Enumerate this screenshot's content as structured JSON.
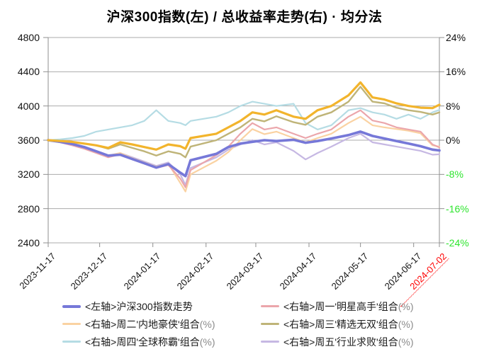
{
  "title": "沪深300指数(左) / 总收益率走势(右) · 均分法",
  "axes": {
    "left": {
      "ticks": [
        {
          "label": "4800",
          "value": 4800
        },
        {
          "label": "4400",
          "value": 4400
        },
        {
          "label": "4000",
          "value": 4000
        },
        {
          "label": "3600",
          "value": 3600
        },
        {
          "label": "3200",
          "value": 3200
        },
        {
          "label": "2800",
          "value": 2800
        },
        {
          "label": "2400",
          "value": 2400
        }
      ]
    },
    "right": {
      "negative_color": "#2ee52e",
      "positive_color": "#111111",
      "ticks": [
        {
          "label": "24%",
          "value": 24
        },
        {
          "label": "16%",
          "value": 16
        },
        {
          "label": "8%",
          "value": 8
        },
        {
          "label": "0%",
          "value": 0
        },
        {
          "label": "-8%",
          "value": -8
        },
        {
          "label": "-16%",
          "value": -16
        },
        {
          "label": "-24%",
          "value": -24
        }
      ]
    },
    "x": {
      "highlight_color": "#ff0000",
      "ticks": [
        {
          "label": "2023-11-17"
        },
        {
          "label": "2023-12-17"
        },
        {
          "label": "2024-01-17"
        },
        {
          "label": "2024-02-17"
        },
        {
          "label": "2024-03-17"
        },
        {
          "label": "2024-04-17"
        },
        {
          "label": "2024-05-17"
        },
        {
          "label": "2024-06-17"
        },
        {
          "label": "2024-07-02",
          "highlight": true
        }
      ]
    }
  },
  "chart_data": {
    "type": "line",
    "title": "沪深300指数(左) / 总收益率走势(右) · 均分法",
    "grid": true,
    "legend_position": "bottom",
    "left_axis": {
      "range": [
        2400,
        4800
      ],
      "tick_step": 400
    },
    "right_axis": {
      "range": [
        -24,
        24
      ],
      "tick_step": 8,
      "unit": "%"
    },
    "x": [
      "2023-11-17",
      "2023-11-24",
      "2023-12-01",
      "2023-12-08",
      "2023-12-15",
      "2023-12-22",
      "2023-12-29",
      "2024-01-05",
      "2024-01-12",
      "2024-01-19",
      "2024-01-26",
      "2024-02-02",
      "2024-02-05",
      "2024-02-08",
      "2024-02-23",
      "2024-03-01",
      "2024-03-08",
      "2024-03-15",
      "2024-03-22",
      "2024-03-29",
      "2024-04-08",
      "2024-04-15",
      "2024-04-22",
      "2024-04-30",
      "2024-05-10",
      "2024-05-17",
      "2024-05-24",
      "2024-05-31",
      "2024-06-07",
      "2024-06-14",
      "2024-06-21",
      "2024-06-28",
      "2024-07-02"
    ],
    "series": [
      {
        "name": "<左轴>沪深300指数走势",
        "suffix": "",
        "axis": "left",
        "color": "#7678d8",
        "width": 3.6,
        "z": 6,
        "in_legend": true,
        "values": [
          3600,
          3580,
          3555,
          3520,
          3470,
          3420,
          3430,
          3380,
          3330,
          3280,
          3320,
          3220,
          3180,
          3365,
          3440,
          3520,
          3560,
          3580,
          3600,
          3590,
          3605,
          3570,
          3590,
          3620,
          3660,
          3700,
          3650,
          3620,
          3590,
          3560,
          3530,
          3490,
          3480
        ]
      },
      {
        "name": "<右轴>周一'明星高手'组合",
        "suffix": "(%)",
        "axis": "right",
        "color": "#eba6ab",
        "width": 2.2,
        "z": 4,
        "in_legend": true,
        "values": [
          0,
          -0.5,
          -1.2,
          -2,
          -3,
          -4,
          -3.3,
          -4.5,
          -5.5,
          -6.5,
          -5.8,
          -9,
          -11,
          -7,
          -3.5,
          -1.5,
          1.5,
          4,
          2.5,
          3,
          1.5,
          0.5,
          1.5,
          2.5,
          5.5,
          7,
          4.6,
          4,
          3,
          2.5,
          2,
          -1,
          -1.7
        ]
      },
      {
        "name": "<右轴>周二'内地豪侠'组合",
        "suffix": "(%)",
        "axis": "right",
        "color": "#fad2a2",
        "width": 2.2,
        "z": 3,
        "in_legend": true,
        "values": [
          0,
          -0.3,
          -0.9,
          -1.6,
          -2.6,
          -3.6,
          -3,
          -4.2,
          -5.2,
          -6.2,
          -5.5,
          -10,
          -12,
          -8,
          -4.8,
          -2.8,
          0,
          2.6,
          1.4,
          2,
          0.5,
          -0.5,
          0.5,
          1.5,
          4,
          5.5,
          3.5,
          3,
          2.6,
          2.2,
          1.6,
          -1.2,
          -1.5
        ]
      },
      {
        "name": "<右轴>周三'精选无双'组合",
        "suffix": "(%)",
        "axis": "right",
        "color": "#bfb478",
        "width": 2.4,
        "z": 5,
        "in_legend": true,
        "values": [
          0,
          -0.2,
          -0.5,
          -0.8,
          -1.2,
          -2,
          -1,
          -1.8,
          -2.6,
          -3.6,
          -2.6,
          -3.2,
          -4,
          -1.5,
          0,
          1.5,
          3,
          5,
          4.4,
          5.6,
          4.2,
          3.6,
          5.5,
          6.5,
          9,
          12.5,
          9,
          8.6,
          7.6,
          7,
          6.6,
          6,
          6.5
        ]
      },
      {
        "name": "<右轴>周四'全球称霸'组合",
        "suffix": "(%)",
        "axis": "right",
        "color": "#b5dce4",
        "width": 2.2,
        "z": 1,
        "in_legend": true,
        "values": [
          0,
          0.2,
          0.5,
          1,
          2,
          2.5,
          3,
          3.5,
          4.5,
          7,
          4.5,
          4,
          3.5,
          4.5,
          5.5,
          6.5,
          8,
          9,
          8.5,
          8,
          8.5,
          4,
          2.5,
          3.5,
          7,
          7.5,
          6.5,
          6,
          5,
          6,
          5,
          6.5,
          7.1
        ]
      },
      {
        "name": "<右轴>周五'行业求败'组合",
        "suffix": "(%)",
        "axis": "right",
        "color": "#c6b8e3",
        "width": 2.2,
        "z": 2,
        "in_legend": true,
        "values": [
          0,
          -0.4,
          -1,
          -1.6,
          -2.6,
          -3.6,
          -3,
          -4,
          -5,
          -6,
          -5.2,
          -8,
          -10.5,
          -6.5,
          -4,
          -2.2,
          -1,
          0,
          -1,
          -0.5,
          -2.5,
          -4.5,
          -3,
          -1.5,
          0.5,
          1.5,
          -0.5,
          -1,
          -1.5,
          -2,
          -2.5,
          -3.4,
          -3.3
        ]
      },
      {
        "name": "总收益率走势(右)·均分法",
        "suffix": "",
        "axis": "right",
        "color": "#f2b42c",
        "width": 3.2,
        "z": 7,
        "in_legend": false,
        "values": [
          0,
          -0.2,
          -0.4,
          -0.8,
          -1.2,
          -1.8,
          -0.5,
          -1,
          -1.6,
          -2.2,
          -1,
          -1.4,
          -2,
          0.5,
          1.5,
          3,
          4.5,
          6.5,
          6,
          7,
          5.5,
          5,
          7,
          8,
          10.5,
          13.5,
          10,
          9.5,
          8.6,
          8,
          7.6,
          7.5,
          8.3
        ]
      }
    ]
  },
  "colors": {
    "grid": "#ababab",
    "axis": "#8f8f8f",
    "index_line": "#7678d8",
    "total_return_line": "#f2b42c"
  }
}
